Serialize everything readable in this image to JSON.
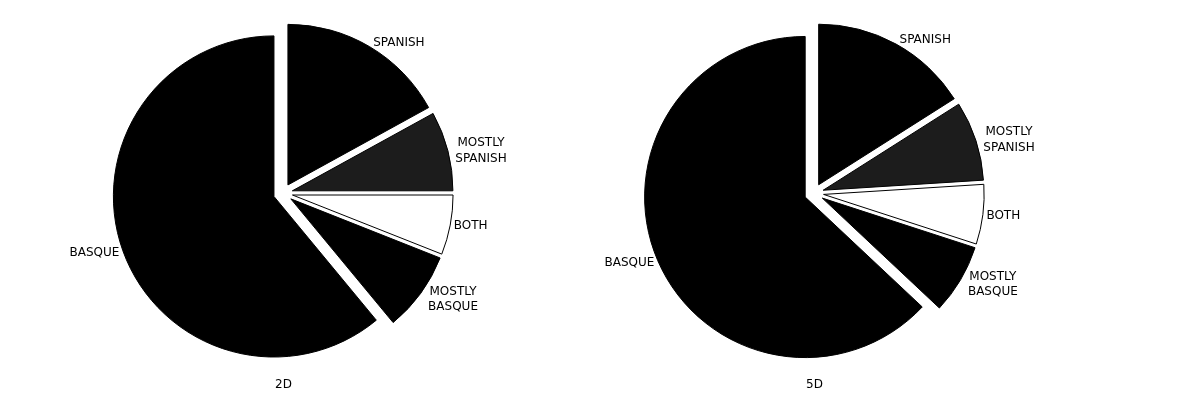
{
  "chart_data": [
    {
      "type": "pie",
      "title": "2D",
      "categories": [
        "SPANISH",
        "MOSTLY SPANISH",
        "BOTH",
        "MOSTLY BASQUE",
        "BASQUE"
      ],
      "values": [
        17,
        8,
        6,
        8,
        61
      ],
      "colors": [
        "#000000",
        "#1c1c1c",
        "#ffffff",
        "#000000",
        "#000000"
      ],
      "legend": false
    },
    {
      "type": "pie",
      "title": "5D",
      "categories": [
        "SPANISH",
        "MOSTLY SPANISH",
        "BOTH",
        "MOSTLY BASQUE",
        "BASQUE"
      ],
      "values": [
        16,
        8,
        6,
        7,
        63
      ],
      "colors": [
        "#000000",
        "#1c1c1c",
        "#ffffff",
        "#000000",
        "#000000"
      ],
      "legend": false
    }
  ]
}
